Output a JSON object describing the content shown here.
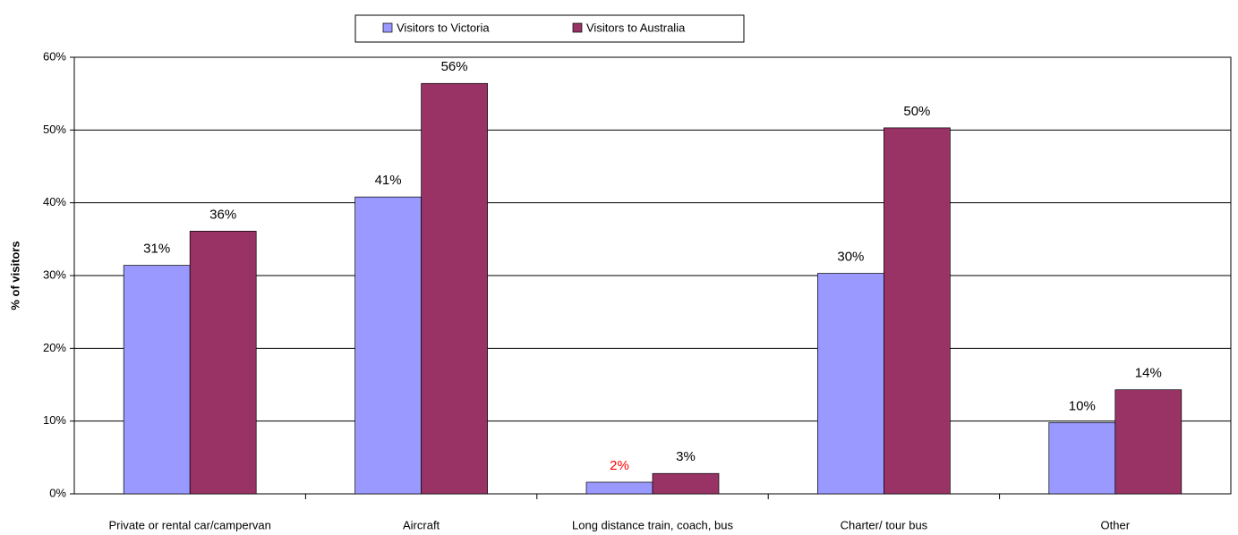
{
  "chart_data": {
    "type": "bar",
    "y_label": "% of visitors",
    "categories": [
      "Private or rental car/campervan",
      "Aircraft",
      "Long distance train, coach, bus",
      "Charter/ tour bus",
      "Other"
    ],
    "series": [
      {
        "name": "Visitors to Victoria",
        "color": "#9999ff",
        "values": [
          31.4,
          40.8,
          1.6,
          30.3,
          9.8
        ],
        "value_labels": [
          "31%",
          "41%",
          "2%",
          "30%",
          "10%"
        ],
        "value_label_colors": [
          "#000000",
          "#000000",
          "#ff0000",
          "#000000",
          "#000000"
        ]
      },
      {
        "name": "Visitors to Australia",
        "color": "#993366",
        "values": [
          36.1,
          56.4,
          2.8,
          50.3,
          14.3
        ],
        "value_labels": [
          "36%",
          "56%",
          "3%",
          "50%",
          "14%"
        ],
        "value_label_colors": [
          "#000000",
          "#000000",
          "#000000",
          "#000000",
          "#000000"
        ]
      }
    ],
    "ylim": [
      0,
      60
    ],
    "yticks": [
      {
        "value": 0,
        "label": "0%"
      },
      {
        "value": 10,
        "label": "10%"
      },
      {
        "value": 20,
        "label": "20%"
      },
      {
        "value": 30,
        "label": "30%"
      },
      {
        "value": 40,
        "label": "40%"
      },
      {
        "value": 50,
        "label": "50%"
      },
      {
        "value": 60,
        "label": "60%"
      }
    ],
    "grid": true,
    "legend": "top"
  }
}
